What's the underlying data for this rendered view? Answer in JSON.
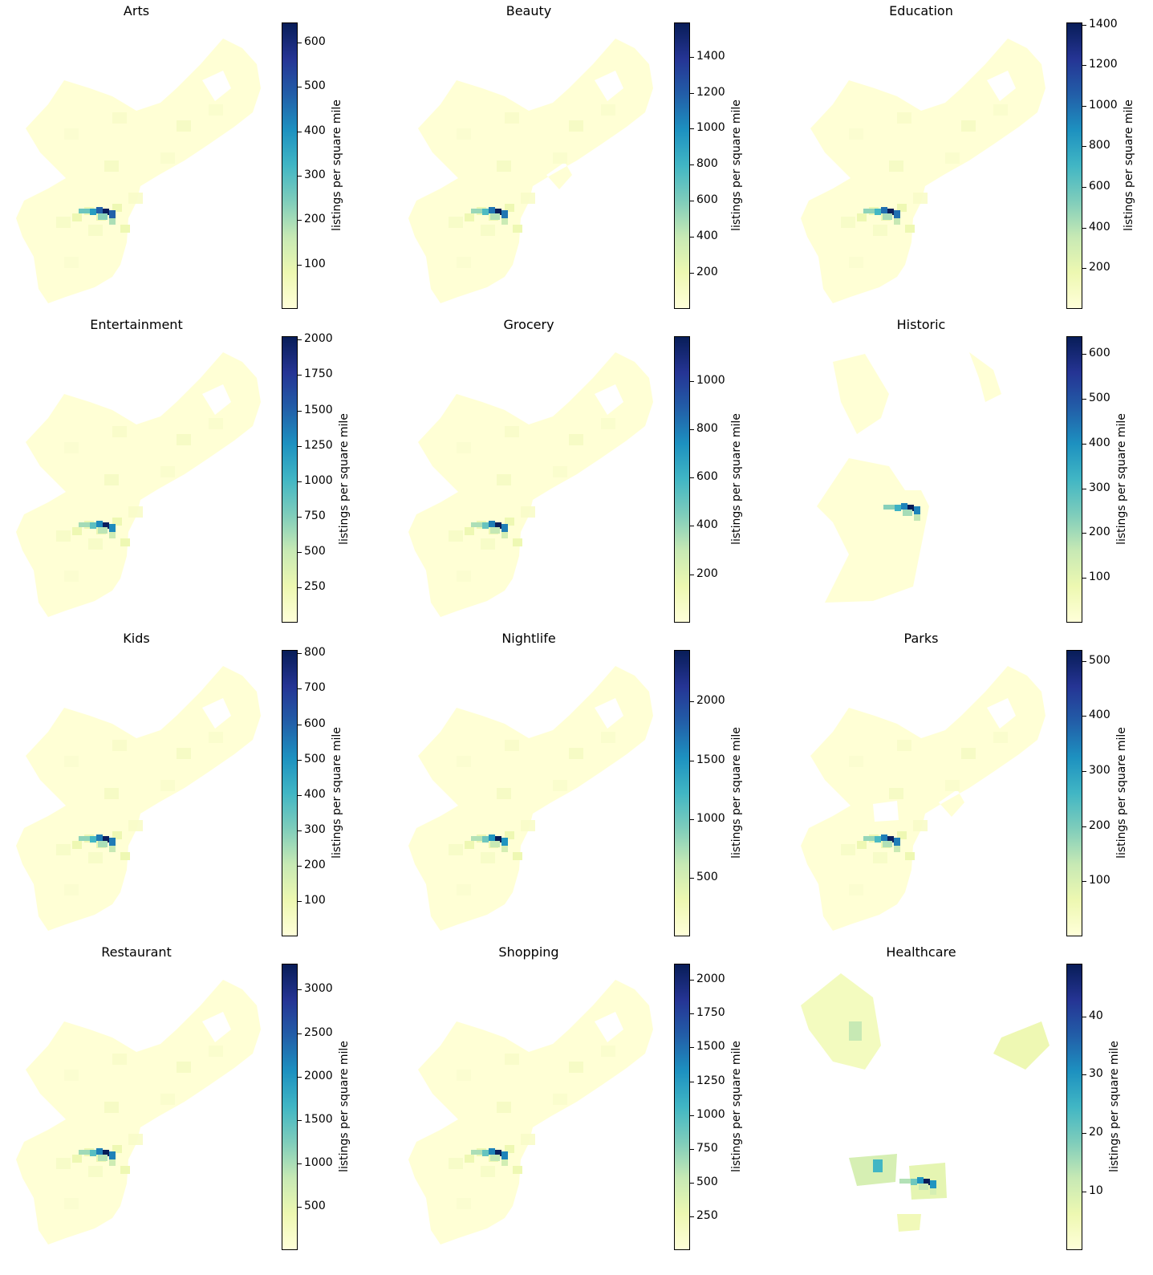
{
  "colors": {
    "colormap": [
      "#ffffd9",
      "#edf8b1",
      "#c7e9b4",
      "#7fcdbb",
      "#41b6c4",
      "#1d91c0",
      "#225ea8",
      "#253494",
      "#081d58"
    ],
    "land": "#ffffd5"
  },
  "colorbar_label": "listings per square mile",
  "chart_data": [
    {
      "type": "map",
      "title": "Arts",
      "vmin": 0,
      "vmax": 645,
      "ticks": [
        100,
        200,
        300,
        400,
        500,
        600
      ],
      "shape": "full",
      "hotspot": [
        640,
        480,
        380
      ]
    },
    {
      "type": "map",
      "title": "Beauty",
      "vmin": 0,
      "vmax": 1590,
      "ticks": [
        200,
        400,
        600,
        800,
        1000,
        1200,
        1400
      ],
      "shape": "holey",
      "hotspot": [
        1590,
        1100,
        750
      ]
    },
    {
      "type": "map",
      "title": "Education",
      "vmin": 0,
      "vmax": 1410,
      "ticks": [
        200,
        400,
        600,
        800,
        1000,
        1200,
        1400
      ],
      "shape": "full",
      "hotspot": [
        1400,
        1000,
        700
      ]
    },
    {
      "type": "map",
      "title": "Entertainment",
      "vmin": 0,
      "vmax": 2025,
      "ticks": [
        250,
        500,
        750,
        1000,
        1250,
        1500,
        1750,
        2000
      ],
      "shape": "full",
      "hotspot": [
        2000,
        1300,
        900
      ]
    },
    {
      "type": "map",
      "title": "Grocery",
      "vmin": 0,
      "vmax": 1185,
      "ticks": [
        200,
        400,
        600,
        800,
        1000
      ],
      "shape": "full",
      "hotspot": [
        1180,
        800,
        500
      ]
    },
    {
      "type": "map",
      "title": "Historic",
      "vmin": 0,
      "vmax": 640,
      "ticks": [
        100,
        200,
        300,
        400,
        500,
        600
      ],
      "shape": "historic",
      "hotspot": [
        640,
        420,
        330
      ]
    },
    {
      "type": "map",
      "title": "Kids",
      "vmin": 0,
      "vmax": 810,
      "ticks": [
        100,
        200,
        300,
        400,
        500,
        600,
        700,
        800
      ],
      "shape": "full",
      "hotspot": [
        800,
        550,
        400
      ]
    },
    {
      "type": "map",
      "title": "Nightlife",
      "vmin": 0,
      "vmax": 2440,
      "ticks": [
        500,
        1000,
        1500,
        2000
      ],
      "shape": "full",
      "hotspot": [
        2440,
        1500,
        1000
      ]
    },
    {
      "type": "map",
      "title": "Parks",
      "vmin": 0,
      "vmax": 520,
      "ticks": [
        100,
        200,
        300,
        400,
        500
      ],
      "shape": "parks",
      "hotspot": [
        510,
        350,
        250
      ]
    },
    {
      "type": "map",
      "title": "Restaurant",
      "vmin": 0,
      "vmax": 3300,
      "ticks": [
        500,
        1000,
        1500,
        2000,
        2500,
        3000
      ],
      "shape": "full",
      "hotspot": [
        3300,
        2200,
        1500
      ]
    },
    {
      "type": "map",
      "title": "Shopping",
      "vmin": 0,
      "vmax": 2120,
      "ticks": [
        250,
        500,
        750,
        1000,
        1250,
        1500,
        1750,
        2000
      ],
      "shape": "full",
      "hotspot": [
        2100,
        1400,
        900
      ]
    },
    {
      "type": "map",
      "title": "Healthcare",
      "vmin": 0,
      "vmax": 49,
      "ticks": [
        10,
        20,
        30,
        40
      ],
      "shape": "healthcare",
      "hotspot": [
        49,
        30,
        20
      ]
    }
  ]
}
